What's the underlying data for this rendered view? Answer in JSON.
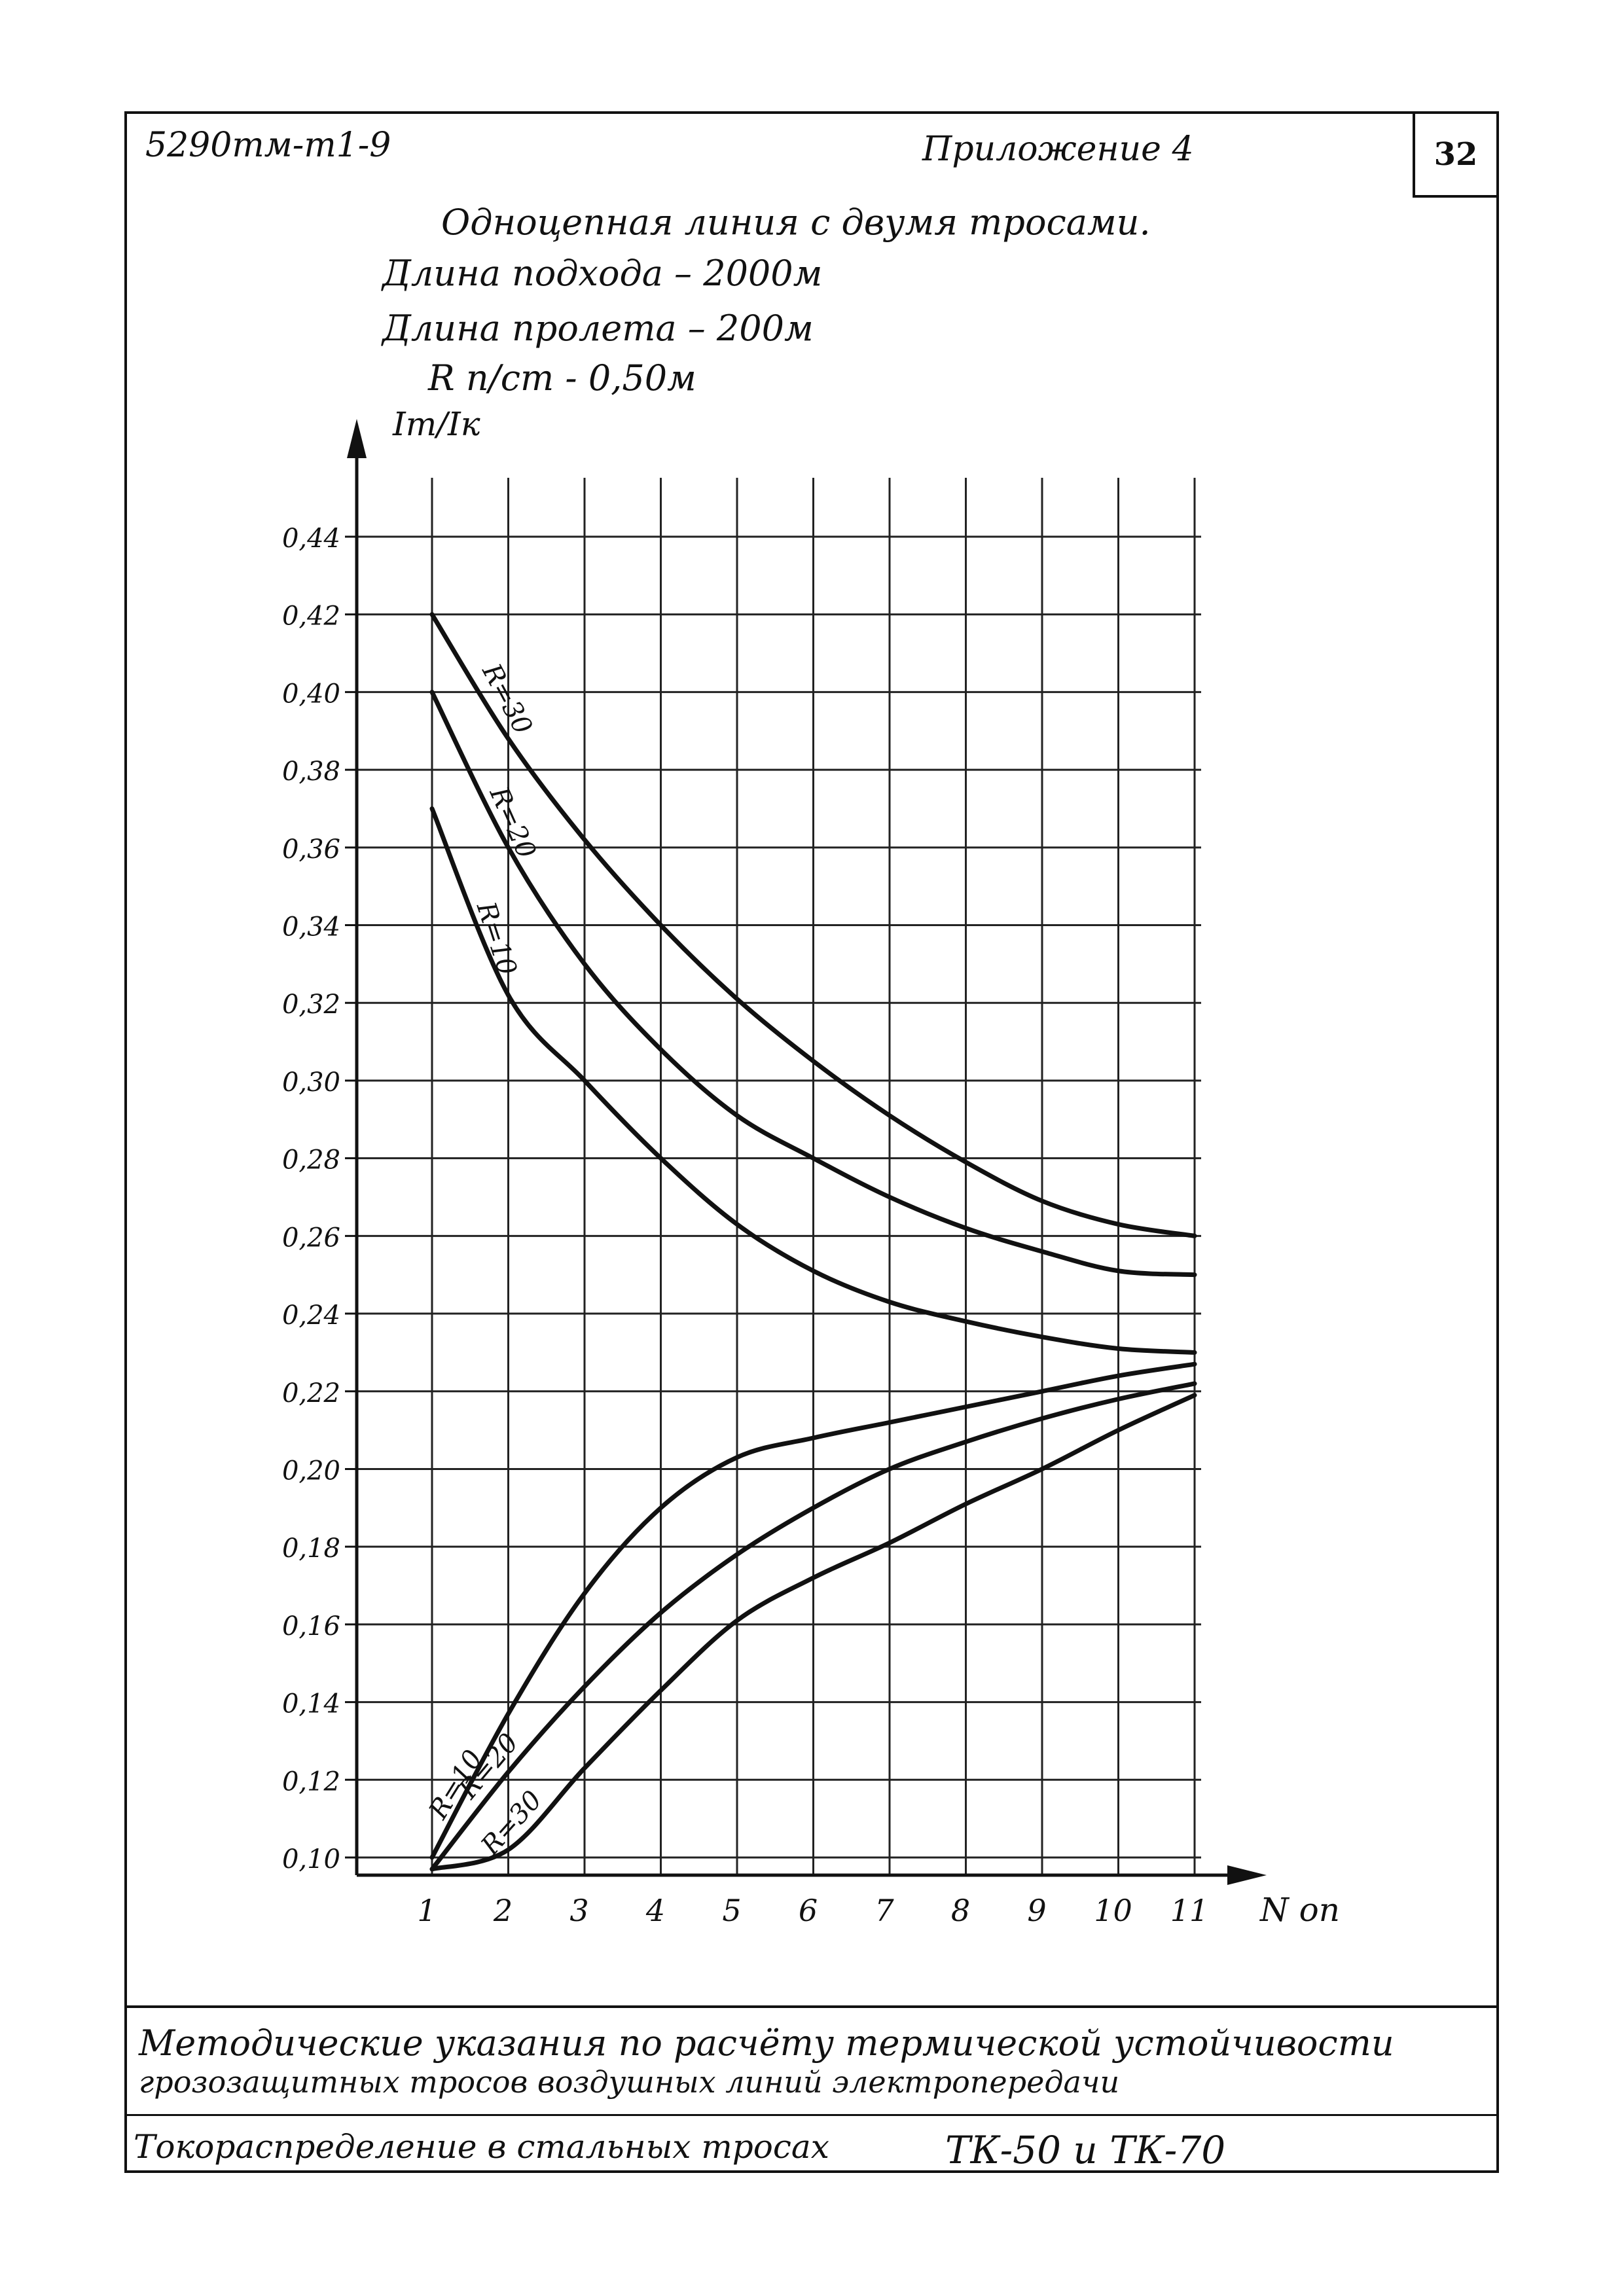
{
  "header": {
    "doc_code": "5290тм-т1-9",
    "appendix": "Приложение 4",
    "page_number": "32"
  },
  "title": {
    "line1": "Одноцепная линия с двумя тросами.",
    "line2": "Длина подхода – 2000м",
    "line3": "Длина пролета – 200м",
    "line4": "R п/ст - 0,50м"
  },
  "footer": {
    "line1": "Методические указания по расчёту термической устойчивости",
    "line2": "грозозащитных тросов воздушных линий электропередачи",
    "line3_left": "Токораспределение в стальных тросах",
    "line3_right": "ТК-50 и ТК-70"
  },
  "chart_data": {
    "type": "line",
    "ylabel": "Iт/Iк",
    "xlabel": "N оп",
    "xlim": [
      1,
      11
    ],
    "ylim": [
      0.09,
      0.45
    ],
    "x_ticks": [
      "1",
      "2",
      "3",
      "4",
      "5",
      "6",
      "7",
      "8",
      "9",
      "10",
      "11"
    ],
    "y_ticks": [
      {
        "value": 0.1,
        "label": "0,10"
      },
      {
        "value": 0.12,
        "label": "0,12"
      },
      {
        "value": 0.14,
        "label": "0,14"
      },
      {
        "value": 0.16,
        "label": "0,16"
      },
      {
        "value": 0.18,
        "label": "0,18"
      },
      {
        "value": 0.2,
        "label": "0,20"
      },
      {
        "value": 0.22,
        "label": "0,22"
      },
      {
        "value": 0.24,
        "label": "0,24"
      },
      {
        "value": 0.26,
        "label": "0,26"
      },
      {
        "value": 0.28,
        "label": "0,28"
      },
      {
        "value": 0.3,
        "label": "0,30"
      },
      {
        "value": 0.32,
        "label": "0,32"
      },
      {
        "value": 0.34,
        "label": "0,34"
      },
      {
        "value": 0.36,
        "label": "0,36"
      },
      {
        "value": 0.38,
        "label": "0,38"
      },
      {
        "value": 0.4,
        "label": "0,40"
      },
      {
        "value": 0.42,
        "label": "0,42"
      },
      {
        "value": 0.44,
        "label": "0,44"
      }
    ],
    "grid": true,
    "series": [
      {
        "name": "R=30",
        "x": [
          1,
          2,
          3,
          4,
          5,
          6,
          7,
          8,
          9,
          10,
          11
        ],
        "values": [
          0.42,
          0.388,
          0.362,
          0.34,
          0.321,
          0.305,
          0.291,
          0.279,
          0.269,
          0.263,
          0.26
        ]
      },
      {
        "name": "R=20",
        "x": [
          1,
          2,
          3,
          4,
          5,
          6,
          7,
          8,
          9,
          10,
          11
        ],
        "values": [
          0.4,
          0.36,
          0.33,
          0.308,
          0.291,
          0.28,
          0.27,
          0.262,
          0.256,
          0.251,
          0.25
        ]
      },
      {
        "name": "R=10",
        "x": [
          1,
          2,
          3,
          4,
          5,
          6,
          7,
          8,
          9,
          10,
          11
        ],
        "values": [
          0.37,
          0.322,
          0.3,
          0.28,
          0.263,
          0.251,
          0.243,
          0.238,
          0.234,
          0.231,
          0.23
        ]
      },
      {
        "name": "R=10",
        "x": [
          1,
          2,
          3,
          4,
          5,
          6,
          7,
          8,
          9,
          10,
          11
        ],
        "values": [
          0.1,
          0.137,
          0.168,
          0.19,
          0.203,
          0.208,
          0.212,
          0.216,
          0.22,
          0.224,
          0.227
        ]
      },
      {
        "name": "R=20",
        "x": [
          1,
          2,
          3,
          4,
          5,
          6,
          7,
          8,
          9,
          10,
          11
        ],
        "values": [
          0.097,
          0.122,
          0.144,
          0.163,
          0.178,
          0.19,
          0.2,
          0.207,
          0.213,
          0.218,
          0.222
        ]
      },
      {
        "name": "R=30",
        "x": [
          1,
          2,
          3,
          4,
          5,
          6,
          7,
          8,
          9,
          10,
          11
        ],
        "values": [
          0.097,
          0.102,
          0.123,
          0.143,
          0.161,
          0.172,
          0.181,
          0.191,
          0.2,
          0.21,
          0.219
        ]
      }
    ]
  }
}
